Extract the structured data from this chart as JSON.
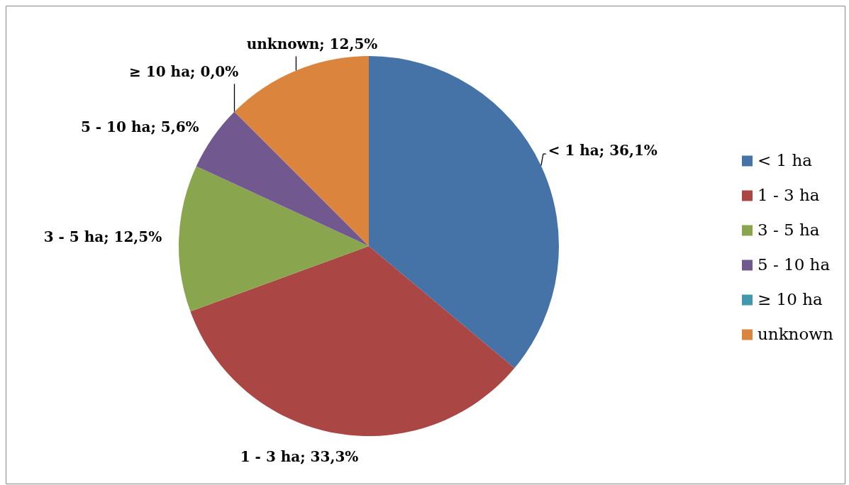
{
  "chart_data": {
    "type": "pie",
    "categories": [
      "< 1 ha",
      "1 - 3 ha",
      "3 - 5 ha",
      "5 - 10 ha",
      "≥ 10 ha",
      "unknown"
    ],
    "values": [
      36.1,
      33.3,
      12.5,
      5.6,
      0.0,
      12.5
    ],
    "colors": [
      "#4572a7",
      "#aa4643",
      "#89a54e",
      "#71588f",
      "#4198af",
      "#db843d"
    ],
    "value_labels": [
      "< 1 ha; 36,1%",
      "1 - 3 ha; 33,3%",
      "3 - 5 ha; 12,5%",
      "5 - 10 ha; 5,6%",
      "≥ 10 ha; 0,0%",
      "unknown; 12,5%"
    ],
    "legend": "right"
  }
}
